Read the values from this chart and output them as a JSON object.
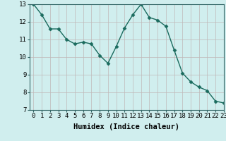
{
  "x": [
    0,
    1,
    2,
    3,
    4,
    5,
    6,
    7,
    8,
    9,
    10,
    11,
    12,
    13,
    14,
    15,
    16,
    17,
    18,
    19,
    20,
    21,
    22,
    23
  ],
  "y": [
    13.0,
    12.4,
    11.6,
    11.6,
    11.0,
    10.75,
    10.85,
    10.75,
    10.1,
    9.65,
    10.6,
    11.65,
    12.4,
    13.0,
    12.25,
    12.1,
    11.75,
    10.4,
    9.1,
    8.6,
    8.3,
    8.1,
    7.5,
    7.4
  ],
  "line_color": "#1a6b5e",
  "marker": "D",
  "marker_size": 2.5,
  "bg_color": "#d0eeee",
  "grid_color": "#c0b8b8",
  "xlabel": "Humidex (Indice chaleur)",
  "ylim": [
    7,
    13
  ],
  "xlim": [
    -0.5,
    23
  ],
  "yticks": [
    7,
    8,
    9,
    10,
    11,
    12,
    13
  ],
  "xticks": [
    0,
    1,
    2,
    3,
    4,
    5,
    6,
    7,
    8,
    9,
    10,
    11,
    12,
    13,
    14,
    15,
    16,
    17,
    18,
    19,
    20,
    21,
    22,
    23
  ],
  "xlabel_fontsize": 7.5,
  "tick_fontsize": 6.5,
  "line_width": 1.0
}
